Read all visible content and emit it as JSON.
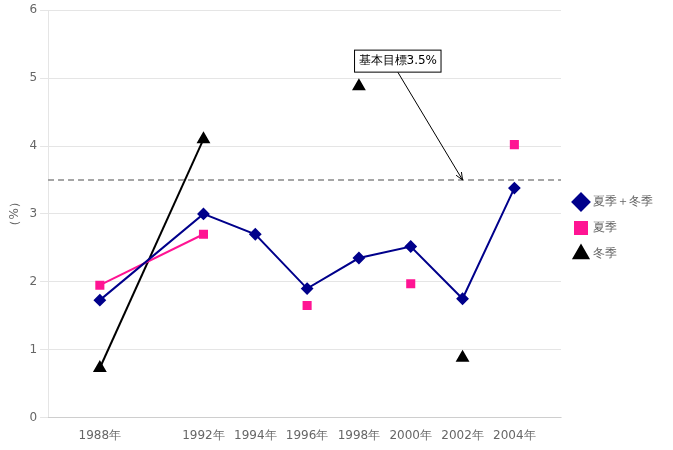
{
  "chart_data": {
    "type": "line",
    "x": [
      1988,
      1992,
      1994,
      1996,
      1998,
      2000,
      2002,
      2004
    ],
    "series": [
      {
        "name": "夏季＋冬季",
        "color": "#00008B",
        "marker": "diamond",
        "line_style": "solid",
        "values": [
          1.73,
          3.0,
          2.7,
          1.9,
          2.35,
          2.52,
          1.75,
          3.38
        ]
      },
      {
        "name": "夏季",
        "color": "#FF1493",
        "marker": "square",
        "line_style": "solid",
        "values": [
          1.95,
          2.7,
          null,
          1.65,
          null,
          1.97,
          null,
          4.02
        ]
      },
      {
        "name": "冬季",
        "color": "#000000",
        "marker": "triangle",
        "line_style": "solid",
        "values": [
          0.73,
          4.1,
          null,
          null,
          4.88,
          null,
          0.88,
          null
        ]
      }
    ],
    "xlim": [
      1986.0,
      2005.8
    ],
    "xticks": [
      {
        "value": 1988,
        "label": "1988年"
      },
      {
        "value": 1992,
        "label": "1992年"
      },
      {
        "value": 1994,
        "label": "1994年"
      },
      {
        "value": 1996,
        "label": "1996年"
      },
      {
        "value": 1998,
        "label": "1998年"
      },
      {
        "value": 2000,
        "label": "2000年"
      },
      {
        "value": 2002,
        "label": "2002年"
      },
      {
        "value": 2004,
        "label": "2004年"
      }
    ],
    "ylim": [
      0,
      6
    ],
    "yticks": [
      0,
      1,
      2,
      3,
      4,
      5,
      6
    ],
    "ylabel": "（%）",
    "grid": "y",
    "legend": "right",
    "target_line": {
      "value": 3.5,
      "color": "#888888",
      "line_style": "dashed"
    },
    "annotations": [
      {
        "text": "基本目標3.5%",
        "x": 1999.5,
        "y": 5.25,
        "arrow_x": 2002.0,
        "arrow_y": 3.5
      }
    ]
  }
}
